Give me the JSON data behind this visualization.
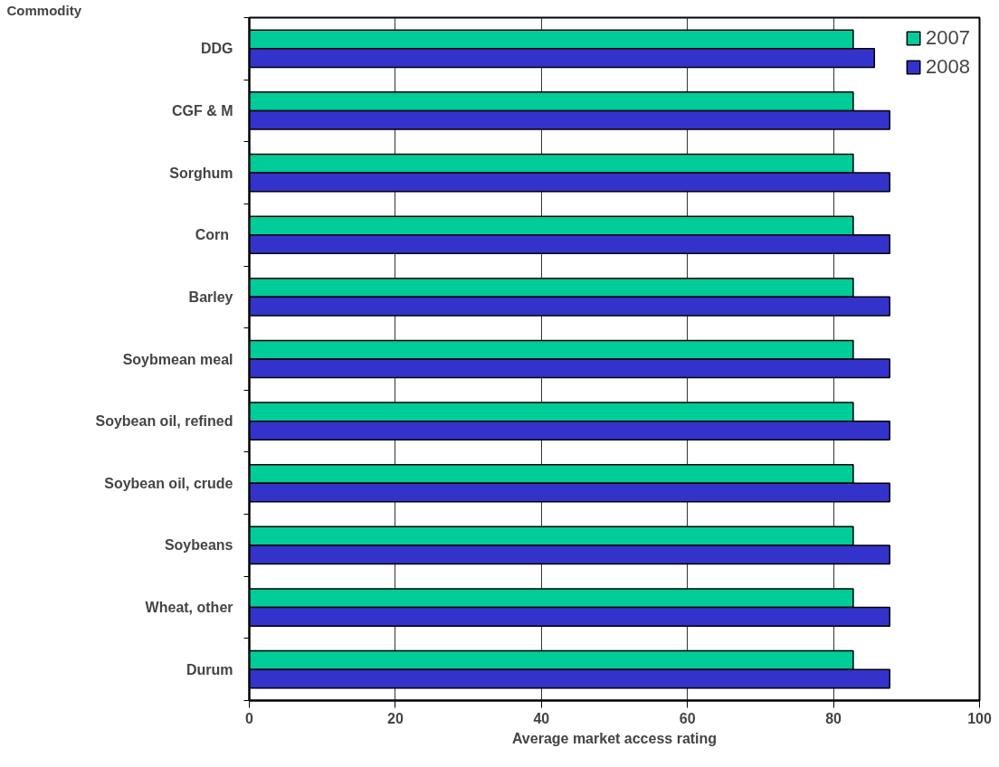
{
  "chart_data": {
    "type": "bar",
    "orientation": "horizontal",
    "ylabel": "Commodity",
    "xlabel": "Average market access rating",
    "categories": [
      "DDG",
      "CGF & M",
      "Sorghum",
      "Corn ",
      "Barley",
      "Soybmean meal",
      "Soybean oil, refined",
      "Soybean oil, crude",
      "Soybeans",
      "Wheat, other",
      "Durum"
    ],
    "series": [
      {
        "name": "2007",
        "color": "#00cc99",
        "values": [
          82.7,
          82.7,
          82.7,
          82.7,
          82.7,
          82.7,
          82.7,
          82.7,
          82.7,
          82.7,
          82.7
        ]
      },
      {
        "name": "2008",
        "color": "#3333cc",
        "values": [
          85.6,
          87.7,
          87.7,
          87.7,
          87.7,
          87.7,
          87.7,
          87.7,
          87.7,
          87.7,
          87.7
        ]
      }
    ],
    "xlim": [
      0,
      100
    ],
    "xticks": [
      0,
      20,
      40,
      60,
      80,
      100
    ],
    "grid": "x",
    "legend": "top right"
  }
}
